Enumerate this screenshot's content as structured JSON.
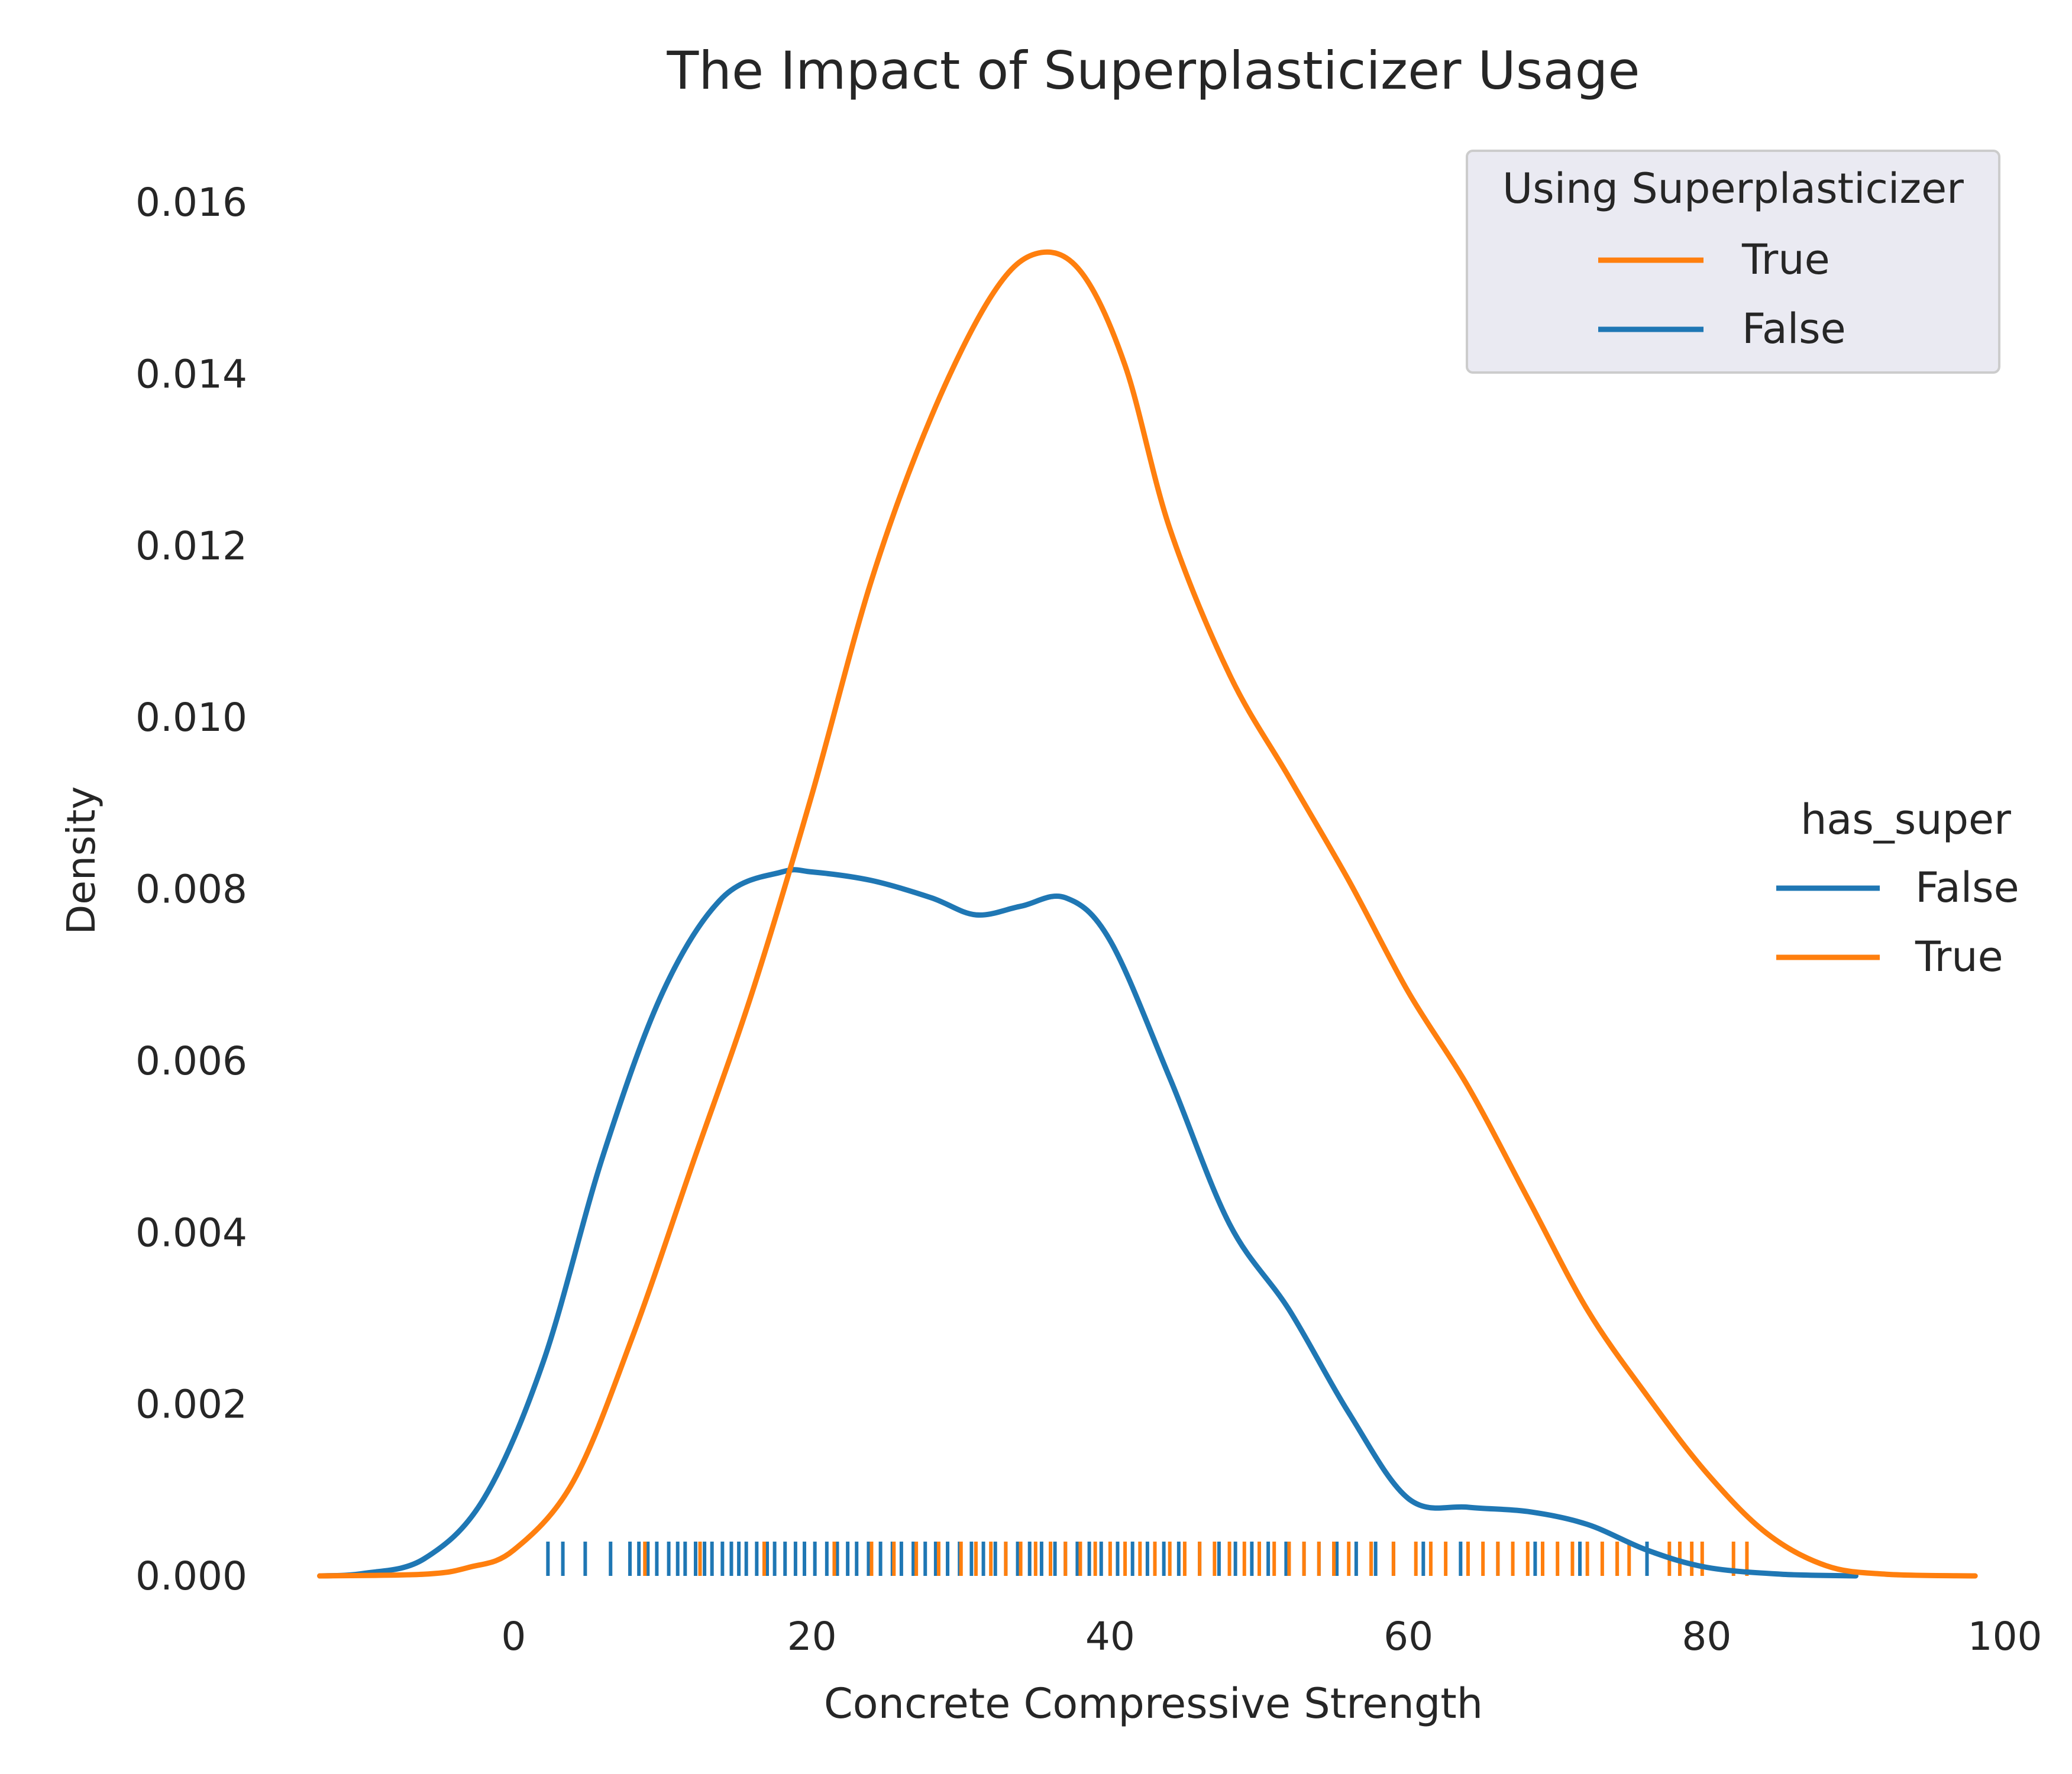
{
  "chart_data": {
    "type": "line",
    "title": "The Impact of Superplasticizer Usage",
    "xlabel": "Concrete Compressive Strength",
    "ylabel": "Density",
    "xlim": [
      -16,
      102
    ],
    "ylim": [
      0,
      0.0166
    ],
    "xticks": [
      0,
      20,
      40,
      60,
      80,
      100
    ],
    "yticks": [
      0.0,
      0.002,
      0.004,
      0.006,
      0.008,
      0.01,
      0.012,
      0.014,
      0.016
    ],
    "ytick_labels": [
      "0.000",
      "0.002",
      "0.004",
      "0.006",
      "0.008",
      "0.010",
      "0.012",
      "0.014",
      "0.016"
    ],
    "grid": false,
    "series": [
      {
        "name": "False",
        "color": "#1f77b4",
        "x": [
          -13,
          -10,
          -6,
          -2,
          2,
          6,
          10,
          14,
          18,
          20,
          24,
          28,
          31,
          34,
          37,
          40,
          44,
          48,
          52,
          56,
          60,
          64,
          68,
          72,
          76,
          80,
          85,
          90
        ],
        "values": [
          0.0,
          3e-05,
          0.0002,
          0.0009,
          0.0025,
          0.0049,
          0.0068,
          0.0079,
          0.0082,
          0.0082,
          0.0081,
          0.0079,
          0.0077,
          0.0078,
          0.0079,
          0.0074,
          0.0058,
          0.0041,
          0.0031,
          0.0019,
          0.0009,
          0.0008,
          0.00075,
          0.0006,
          0.0003,
          0.0001,
          2e-05,
          0.0
        ]
      },
      {
        "name": "True",
        "color": "#ff7f0e",
        "x": [
          -13,
          -6,
          -3,
          0,
          4,
          8,
          12,
          16,
          20,
          24,
          28,
          32,
          35,
          38,
          41,
          44,
          48,
          52,
          56,
          60,
          64,
          68,
          72,
          76,
          80,
          84,
          88,
          92,
          98
        ],
        "values": [
          0.0,
          2e-05,
          0.0001,
          0.0003,
          0.0011,
          0.0028,
          0.0048,
          0.0068,
          0.0091,
          0.0116,
          0.0135,
          0.0149,
          0.0154,
          0.0152,
          0.0141,
          0.0122,
          0.0105,
          0.0093,
          0.0081,
          0.0068,
          0.0057,
          0.0044,
          0.0031,
          0.0021,
          0.0012,
          0.0005,
          0.00012,
          2e-05,
          0.0
        ]
      }
    ],
    "rug": {
      "False": [
        2.3,
        3.3,
        4.8,
        6.5,
        7.8,
        8.4,
        9.0,
        9.6,
        10.4,
        11.0,
        11.5,
        12.2,
        12.8,
        13.3,
        14.0,
        14.6,
        15.1,
        15.6,
        16.3,
        17.0,
        17.5,
        18.2,
        18.9,
        19.5,
        20.2,
        21.0,
        21.7,
        22.4,
        23.0,
        23.8,
        24.6,
        25.4,
        26.0,
        26.8,
        27.6,
        28.3,
        29.1,
        29.9,
        30.7,
        31.5,
        32.3,
        33.0,
        33.8,
        34.6,
        35.4,
        36.3,
        37.0,
        37.8,
        38.6,
        39.4,
        40.5,
        41.5,
        42.5,
        43.6,
        44.6,
        46.0,
        47.3,
        48.4,
        49.5,
        50.6,
        51.8,
        53.0,
        54.0,
        55.2,
        56.5,
        57.8,
        59.0,
        61.0,
        63.5,
        66.0,
        68.5,
        71.5,
        74.0,
        76.0
      ],
      "True": [
        8.8,
        12.5,
        16.8,
        21.5,
        24.0,
        25.5,
        27.0,
        28.5,
        30.0,
        31.0,
        32.0,
        33.0,
        34.0,
        35.0,
        36.0,
        37.0,
        38.0,
        39.0,
        40.0,
        41.0,
        42.0,
        43.0,
        44.0,
        45.0,
        46.0,
        47.0,
        48.0,
        49.0,
        50.0,
        51.0,
        52.0,
        53.0,
        54.0,
        55.0,
        56.0,
        57.5,
        59.0,
        60.5,
        61.5,
        62.5,
        64.0,
        65.0,
        66.0,
        67.0,
        68.0,
        69.0,
        70.0,
        71.0,
        72.0,
        73.0,
        74.0,
        74.8,
        77.5,
        78.2,
        79.0,
        79.7,
        81.8,
        82.7
      ]
    },
    "legends": [
      {
        "title": "Using Superplasticizer",
        "placement": "top-right",
        "entries": [
          {
            "label": "True",
            "color": "#ff7f0e"
          },
          {
            "label": "False",
            "color": "#1f77b4"
          }
        ]
      },
      {
        "title": "has_super",
        "placement": "center-right",
        "entries": [
          {
            "label": "False",
            "color": "#1f77b4"
          },
          {
            "label": "True",
            "color": "#ff7f0e"
          }
        ]
      }
    ]
  }
}
